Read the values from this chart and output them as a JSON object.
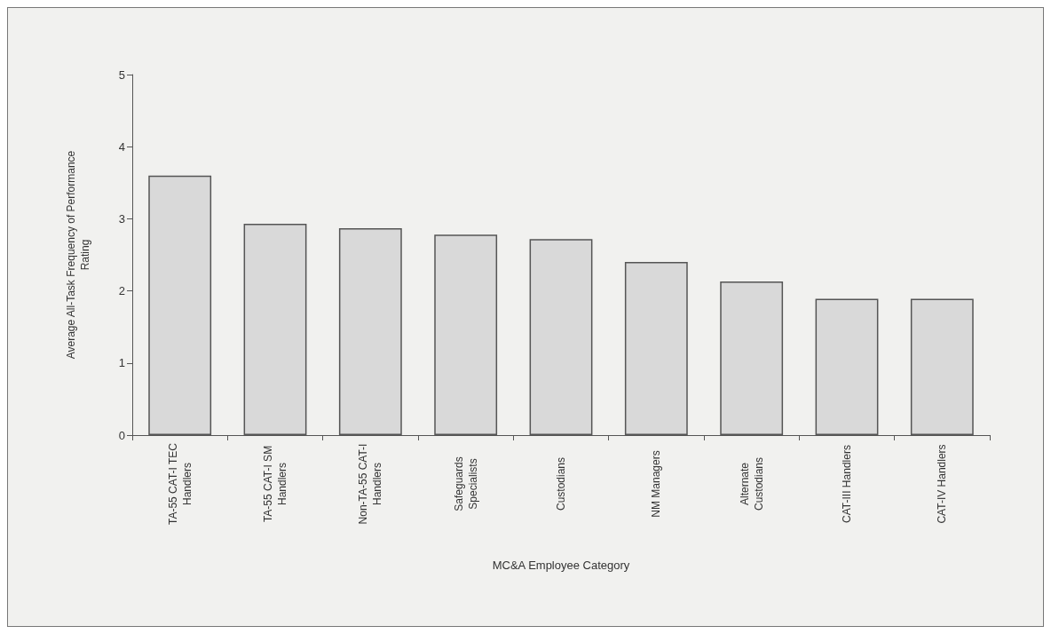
{
  "chart_data": {
    "type": "bar",
    "categories": [
      "TA-55 CAT-I TEC\nHandlers",
      "TA-55 CAT-I SM\nHandlers",
      "Non-TA-55 CAT-I\nHandlers",
      "Safeguards\nSpecialists",
      "Custodians",
      "NM Managers",
      "Alternate\nCustodians",
      "CAT-III Handlers",
      "CAT-IV Handlers"
    ],
    "values": [
      3.6,
      2.93,
      2.87,
      2.78,
      2.72,
      2.4,
      2.13,
      1.89,
      1.89
    ],
    "color": "#d9d9d9",
    "xlabel": "MC&A Employee Category",
    "ylabel": "Average All-Task Frequency of Performance\nRating",
    "ylim": [
      0,
      5
    ],
    "yticks": [
      0,
      1,
      2,
      3,
      4,
      5
    ],
    "grid": false
  }
}
